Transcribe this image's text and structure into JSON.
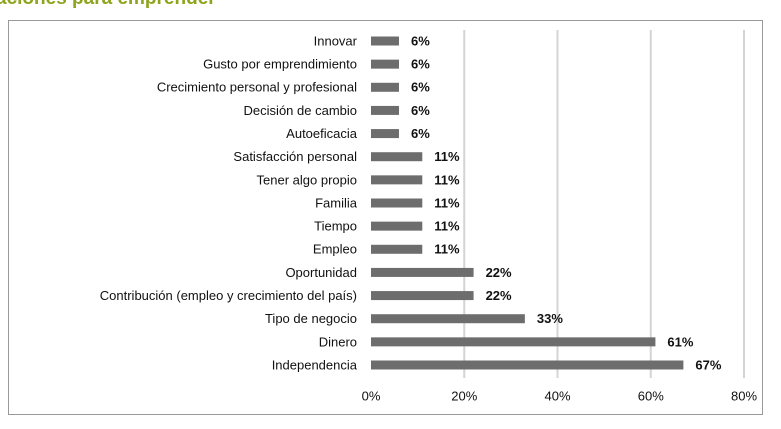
{
  "chart_data": {
    "type": "bar",
    "orientation": "horizontal",
    "title": "aciones para emprender",
    "categories": [
      "Innovar",
      "Gusto por emprendimiento",
      "Crecimiento personal y profesional",
      "Decisión de cambio",
      "Autoeficacia",
      "Satisfacción personal",
      "Tener algo propio",
      "Familia",
      "Tiempo",
      "Empleo",
      "Oportunidad",
      "Contribución (empleo y crecimiento del país)",
      "Tipo de negocio",
      "Dinero",
      "Independencia"
    ],
    "values": [
      6,
      6,
      6,
      6,
      6,
      11,
      11,
      11,
      11,
      11,
      22,
      22,
      33,
      61,
      67
    ],
    "value_labels": [
      "6%",
      "6%",
      "6%",
      "6%",
      "6%",
      "11%",
      "11%",
      "11%",
      "11%",
      "11%",
      "22%",
      "22%",
      "33%",
      "61%",
      "67%"
    ],
    "color": "#6d6d6d",
    "xlim": [
      0,
      80
    ],
    "xticks": [
      {
        "value": 0,
        "label": "0%"
      },
      {
        "value": 20,
        "label": "20%"
      },
      {
        "value": 40,
        "label": "40%"
      },
      {
        "value": 60,
        "label": "60%"
      },
      {
        "value": 80,
        "label": "80%"
      }
    ],
    "grid": true
  }
}
